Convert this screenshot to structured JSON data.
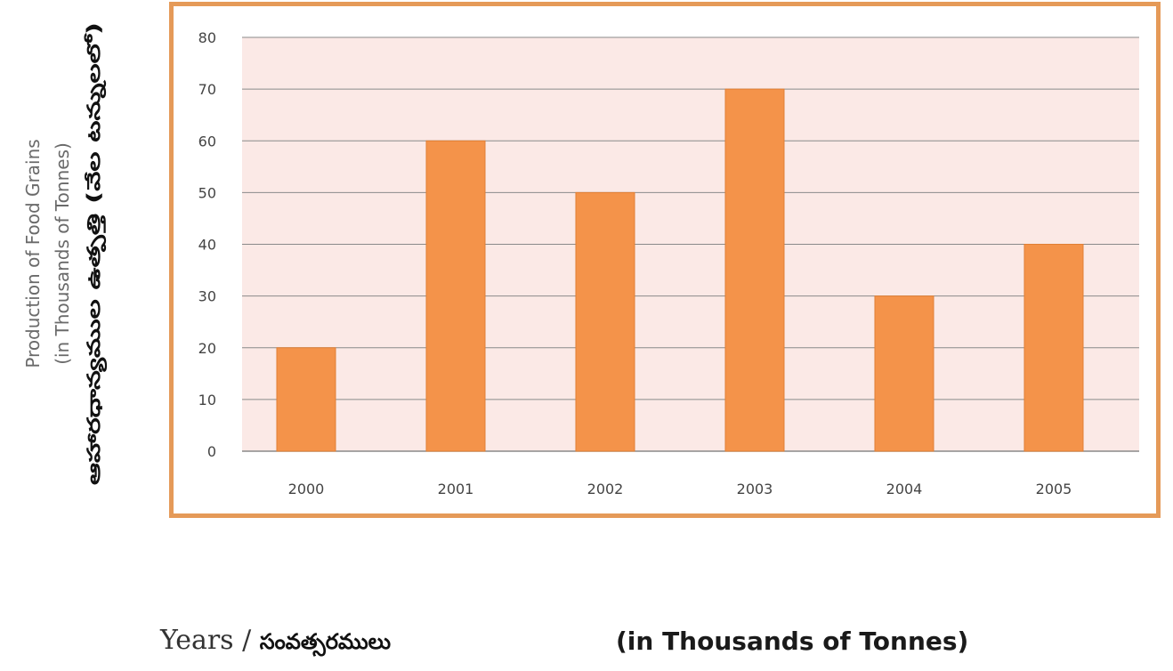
{
  "chart_data": {
    "type": "bar",
    "categories": [
      "2000",
      "2001",
      "2002",
      "2003",
      "2004",
      "2005"
    ],
    "values": [
      20,
      60,
      50,
      70,
      30,
      40
    ],
    "ylim": [
      0,
      80
    ],
    "yticks": [
      0,
      10,
      20,
      30,
      40,
      50,
      60,
      70,
      80
    ],
    "grid": true,
    "ylabel": {
      "line1": "Production of Food Grains",
      "line2": "(in Thousands of Tonnes)",
      "line3": "ఆహారధాన్యముల ఉత్పత్తి (వేల టన్నులలో)"
    },
    "xlabel": {
      "en": "Years / ",
      "te": "సంవత్సరములు"
    },
    "unit_note": "(in Thousands of Tonnes)"
  },
  "colors": {
    "bar": "#f4934a",
    "bar_edge": "#e07f35",
    "plot_bg": "#fbe9e6",
    "frame": "#e59a58",
    "grid": "#8a8a8a"
  }
}
